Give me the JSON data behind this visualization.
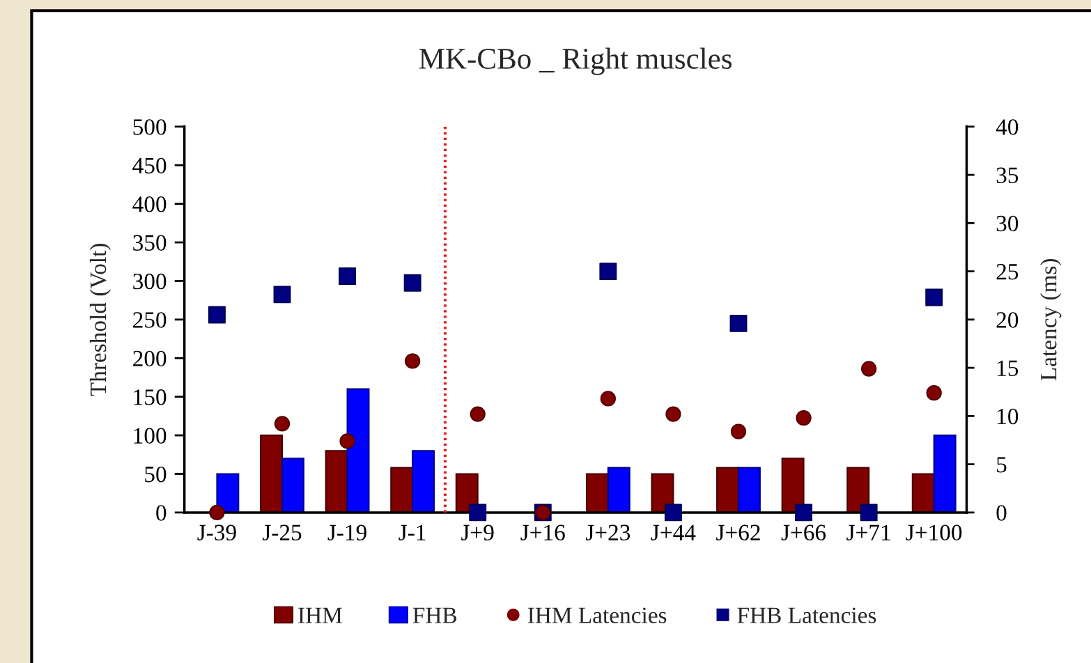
{
  "chart_data": {
    "type": "bar",
    "title": "MK-CBo _ Right muscles",
    "ylabel": "Threshold (Volt)",
    "y2label": "Latency (ms)",
    "categories": [
      "J-39",
      "J-25",
      "J-19",
      "J-1",
      "J+9",
      "J+16",
      "J+23",
      "J+44",
      "J+62",
      "J+66",
      "J+71",
      "J+100"
    ],
    "series": [
      {
        "name": "IHM",
        "type": "bar",
        "color": "#800000",
        "values": [
          null,
          100,
          80,
          58,
          50,
          null,
          50,
          50,
          58,
          70,
          58,
          50
        ]
      },
      {
        "name": "FHB",
        "type": "bar",
        "color": "#0000ff",
        "values": [
          50,
          70,
          160,
          80,
          null,
          null,
          58,
          null,
          58,
          null,
          null,
          100
        ]
      },
      {
        "name": "IHM Latencies",
        "type": "scatter",
        "axis": "y2",
        "marker": "circle",
        "color": "#800000",
        "values": [
          0,
          9.2,
          7.4,
          15.7,
          10.2,
          0,
          11.8,
          10.2,
          8.4,
          9.8,
          14.9,
          12.4
        ]
      },
      {
        "name": "FHB Latencies",
        "type": "scatter",
        "axis": "y2",
        "marker": "square",
        "color": "#000080",
        "values": [
          20.5,
          22.6,
          24.5,
          23.8,
          0,
          0,
          25.0,
          0,
          19.6,
          0,
          0,
          22.3
        ]
      }
    ],
    "ylim": [
      0,
      500
    ],
    "yticks": [
      0,
      50,
      100,
      150,
      200,
      250,
      300,
      350,
      400,
      450,
      500
    ],
    "y2lim": [
      0,
      40
    ],
    "y2ticks": [
      0,
      5,
      10,
      15,
      20,
      25,
      30,
      35,
      40
    ],
    "legend": "bottom"
  }
}
